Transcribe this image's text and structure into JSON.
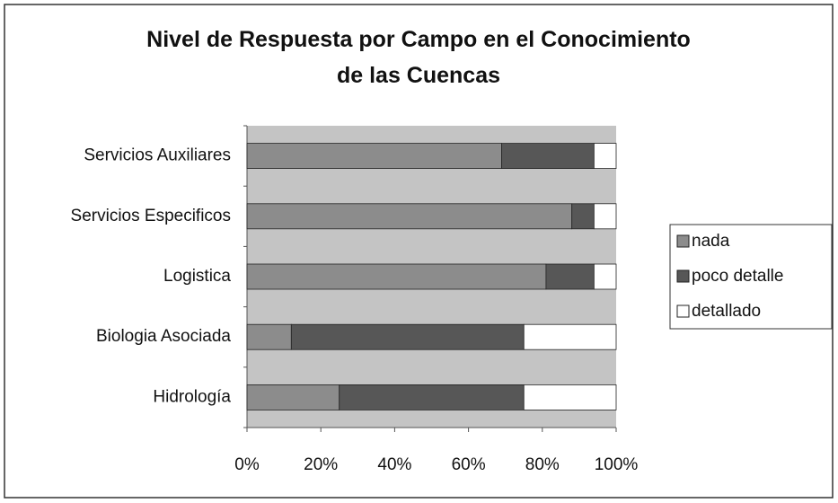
{
  "chart_data": {
    "type": "stacked_bar_horizontal",
    "title": "Nivel de Respuesta por Campo en el Conocimiento de las Cuencas",
    "categories": [
      "Servicios Auxiliares",
      "Servicios Especificos",
      "Logistica",
      "Biologia Asociada",
      "Hidrología"
    ],
    "series": [
      {
        "name": "nada",
        "color": "#8c8c8c",
        "values": [
          69,
          88,
          81,
          12,
          25
        ]
      },
      {
        "name": "poco detalle",
        "color": "#575757",
        "values": [
          25,
          6,
          13,
          63,
          50
        ]
      },
      {
        "name": "detallado",
        "color": "#ffffff",
        "values": [
          6,
          6,
          6,
          25,
          25
        ]
      }
    ],
    "xlim": [
      0,
      100
    ],
    "xticks": [
      {
        "value": 0,
        "label": "0%"
      },
      {
        "value": 20,
        "label": "20%"
      },
      {
        "value": 40,
        "label": "40%"
      },
      {
        "value": 60,
        "label": "60%"
      },
      {
        "value": 80,
        "label": "80%"
      },
      {
        "value": 100,
        "label": "100%"
      }
    ],
    "grid": false,
    "legend": "right"
  }
}
